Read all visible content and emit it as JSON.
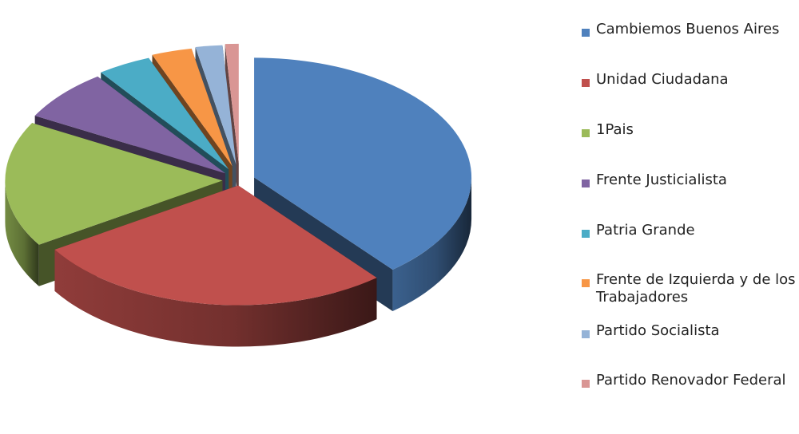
{
  "chart_data": {
    "type": "pie",
    "title": "",
    "legend_position": "right",
    "three_d": true,
    "exploded": true,
    "slices": [
      {
        "label": "Cambiemos Buenos Aires",
        "value": 39.0,
        "color": "#4F81BD"
      },
      {
        "label": "Unidad Ciudadana",
        "value": 27.0,
        "color": "#C0504D"
      },
      {
        "label": "1Pais",
        "value": 17.0,
        "color": "#9BBB59"
      },
      {
        "label": "Frente Justicialista",
        "value": 7.0,
        "color": "#8064A2"
      },
      {
        "label": "Patria Grande",
        "value": 4.0,
        "color": "#4BACC6"
      },
      {
        "label": "Frente de Izquierda y de los Trabajadores",
        "value": 3.0,
        "color": "#F79646"
      },
      {
        "label": "Partido Socialista",
        "value": 2.0,
        "color": "#95B3D7"
      },
      {
        "label": "Partido Renovador Federal",
        "value": 1.0,
        "color": "#D99694"
      }
    ]
  }
}
